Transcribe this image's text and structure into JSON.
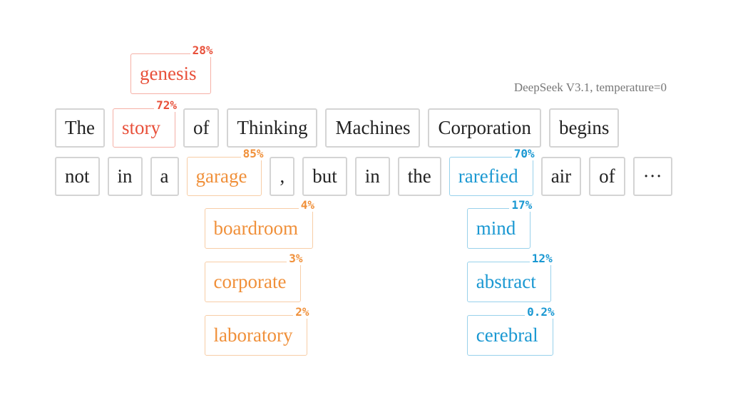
{
  "caption": "DeepSeek V3.1, temperature=0",
  "lines": [
    [
      {
        "text": "The"
      },
      {
        "text": "story",
        "probability": "72%",
        "color": "#e8503a",
        "alternatives": [
          {
            "text": "genesis",
            "probability": "28%"
          }
        ]
      },
      {
        "text": "of"
      },
      {
        "text": "Thinking"
      },
      {
        "text": "Machines"
      },
      {
        "text": "Corporation"
      },
      {
        "text": "begins"
      }
    ],
    [
      {
        "text": "not"
      },
      {
        "text": "in"
      },
      {
        "text": "a"
      },
      {
        "text": "garage",
        "probability": "85%",
        "color": "#f0903a",
        "alternatives": [
          {
            "text": "boardroom",
            "probability": "4%"
          },
          {
            "text": "corporate",
            "probability": "3%"
          },
          {
            "text": "laboratory",
            "probability": "2%"
          }
        ]
      },
      {
        "text": ","
      },
      {
        "text": "but"
      },
      {
        "text": "in"
      },
      {
        "text": "the"
      },
      {
        "text": "rarefied",
        "probability": "70%",
        "color": "#1a98d2",
        "alternatives": [
          {
            "text": "mind",
            "probability": "17%"
          },
          {
            "text": "abstract",
            "probability": "12%"
          },
          {
            "text": "cerebral",
            "probability": "0.2%"
          }
        ]
      },
      {
        "text": "air"
      },
      {
        "text": "of"
      },
      {
        "text": "···"
      }
    ]
  ]
}
